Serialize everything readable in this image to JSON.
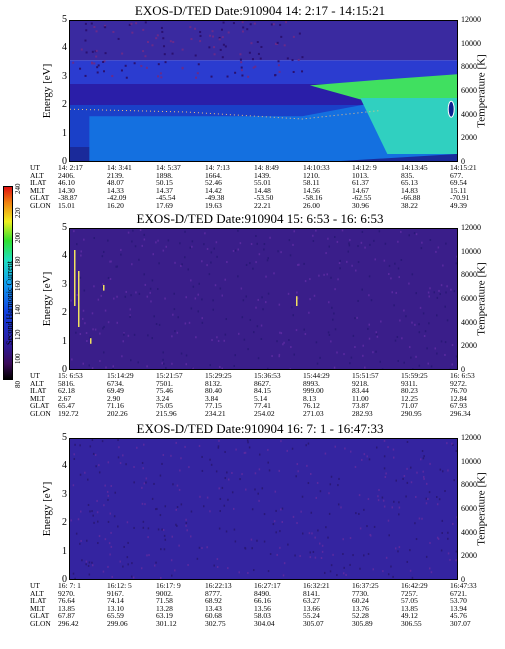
{
  "chart_data": [
    {
      "type": "heatmap",
      "title": "EXOS-D/TED   Date:910904  14: 2:17 - 14:15:21",
      "ylabel": "Energy [eV]",
      "y2label": "Temperature [K]",
      "ylim": [
        0,
        5
      ],
      "y2lim": [
        0,
        12000
      ],
      "yticks": [
        "0",
        "1",
        "2",
        "3",
        "4",
        "5"
      ],
      "y2ticks": [
        "0",
        "2000",
        "4000",
        "6000",
        "8000",
        "10000",
        "12000"
      ],
      "table": {
        "UT": [
          "14: 2:17",
          "14: 3:41",
          "14: 5:37",
          "14: 7:13",
          "14: 8:49",
          "14:10:33",
          "14:12: 9",
          "14:13:45",
          "14:15:21"
        ],
        "ALT": [
          "2406.",
          "2139.",
          "1898.",
          "1664.",
          "1439.",
          "1210.",
          "1013.",
          "835.",
          "677."
        ],
        "ILAT": [
          "46.10",
          "48.07",
          "50.15",
          "52.46",
          "55.01",
          "58.11",
          "61.37",
          "65.13",
          "69.54"
        ],
        "MLT": [
          "14.30",
          "14.33",
          "14.37",
          "14.42",
          "14.48",
          "14.56",
          "14.67",
          "14.83",
          "15.11"
        ],
        "GLAT": [
          "-38.87",
          "-42.09",
          "-45.54",
          "-49.38",
          "-53.50",
          "-58.16",
          "-62.55",
          "-66.88",
          "-70.91"
        ],
        "GLON": [
          "15.01",
          "16.20",
          "17.69",
          "19.63",
          "22.21",
          "26.00",
          "30.96",
          "38.22",
          "49.39"
        ]
      }
    },
    {
      "type": "heatmap",
      "title": "EXOS-D/TED   Date:910904  15: 6:53 - 16: 6:53",
      "ylabel": "Energy [eV]",
      "y2label": "Temperature [K]",
      "ylim": [
        0,
        5
      ],
      "y2lim": [
        0,
        12000
      ],
      "yticks": [
        "0",
        "1",
        "2",
        "3",
        "4",
        "5"
      ],
      "y2ticks": [
        "0",
        "2000",
        "4000",
        "6000",
        "8000",
        "10000",
        "12000"
      ],
      "table": {
        "UT": [
          "15: 6:53",
          "15:14:29",
          "15:21:57",
          "15:29:25",
          "15:36:53",
          "15:44:29",
          "15:51:57",
          "15:59:25",
          "16: 6:53"
        ],
        "ALT": [
          "5816.",
          "6734.",
          "7501.",
          "8132.",
          "8627.",
          "8993.",
          "9218.",
          "9311.",
          "9272."
        ],
        "ILAT": [
          "62.18",
          "69.49",
          "75.46",
          "80.40",
          "84.15",
          "999.00",
          "83.44",
          "80.23",
          "76.70"
        ],
        "MLT": [
          "2.67",
          "2.90",
          "3.24",
          "3.84",
          "5.14",
          "8.13",
          "11.00",
          "12.25",
          "12.84"
        ],
        "GLAT": [
          "65.47",
          "71.16",
          "75.05",
          "77.15",
          "77.41",
          "76.12",
          "73.87",
          "71.07",
          "67.93"
        ],
        "GLON": [
          "192.72",
          "202.26",
          "215.96",
          "234.21",
          "254.02",
          "271.03",
          "282.93",
          "290.95",
          "296.34"
        ]
      }
    },
    {
      "type": "heatmap",
      "title": "EXOS-D/TED   Date:910904  16: 7: 1 - 16:47:33",
      "ylabel": "Energy [eV]",
      "y2label": "Temperature [K]",
      "ylim": [
        0,
        5
      ],
      "y2lim": [
        0,
        12000
      ],
      "yticks": [
        "0",
        "1",
        "2",
        "3",
        "4",
        "5"
      ],
      "y2ticks": [
        "0",
        "2000",
        "4000",
        "6000",
        "8000",
        "10000",
        "12000"
      ],
      "table": {
        "UT": [
          "16: 7: 1",
          "16:12: 5",
          "16:17: 9",
          "16:22:13",
          "16:27:17",
          "16:32:21",
          "16:37:25",
          "16:42:29",
          "16:47:33"
        ],
        "ALT": [
          "9270.",
          "9167.",
          "9002.",
          "8777.",
          "8490.",
          "8141.",
          "7730.",
          "7257.",
          "6721."
        ],
        "ILAT": [
          "76.64",
          "74.14",
          "71.58",
          "68.92",
          "66.16",
          "63.27",
          "60.24",
          "57.05",
          "53.70"
        ],
        "MLT": [
          "13.85",
          "13.10",
          "13.28",
          "13.43",
          "13.56",
          "13.66",
          "13.76",
          "13.85",
          "13.94"
        ],
        "GLAT": [
          "67.87",
          "65.59",
          "63.19",
          "60.68",
          "58.03",
          "55.24",
          "52.28",
          "49.12",
          "45.76"
        ],
        "GLON": [
          "296.42",
          "299.06",
          "301.12",
          "302.75",
          "304.04",
          "305.07",
          "305.89",
          "306.55",
          "307.07"
        ]
      }
    }
  ],
  "colorbar": {
    "label": "Second Harmonic Current",
    "ticks": [
      "80",
      "100",
      "120",
      "140",
      "160",
      "180",
      "200",
      "220",
      "240"
    ],
    "range": [
      80,
      240
    ]
  }
}
